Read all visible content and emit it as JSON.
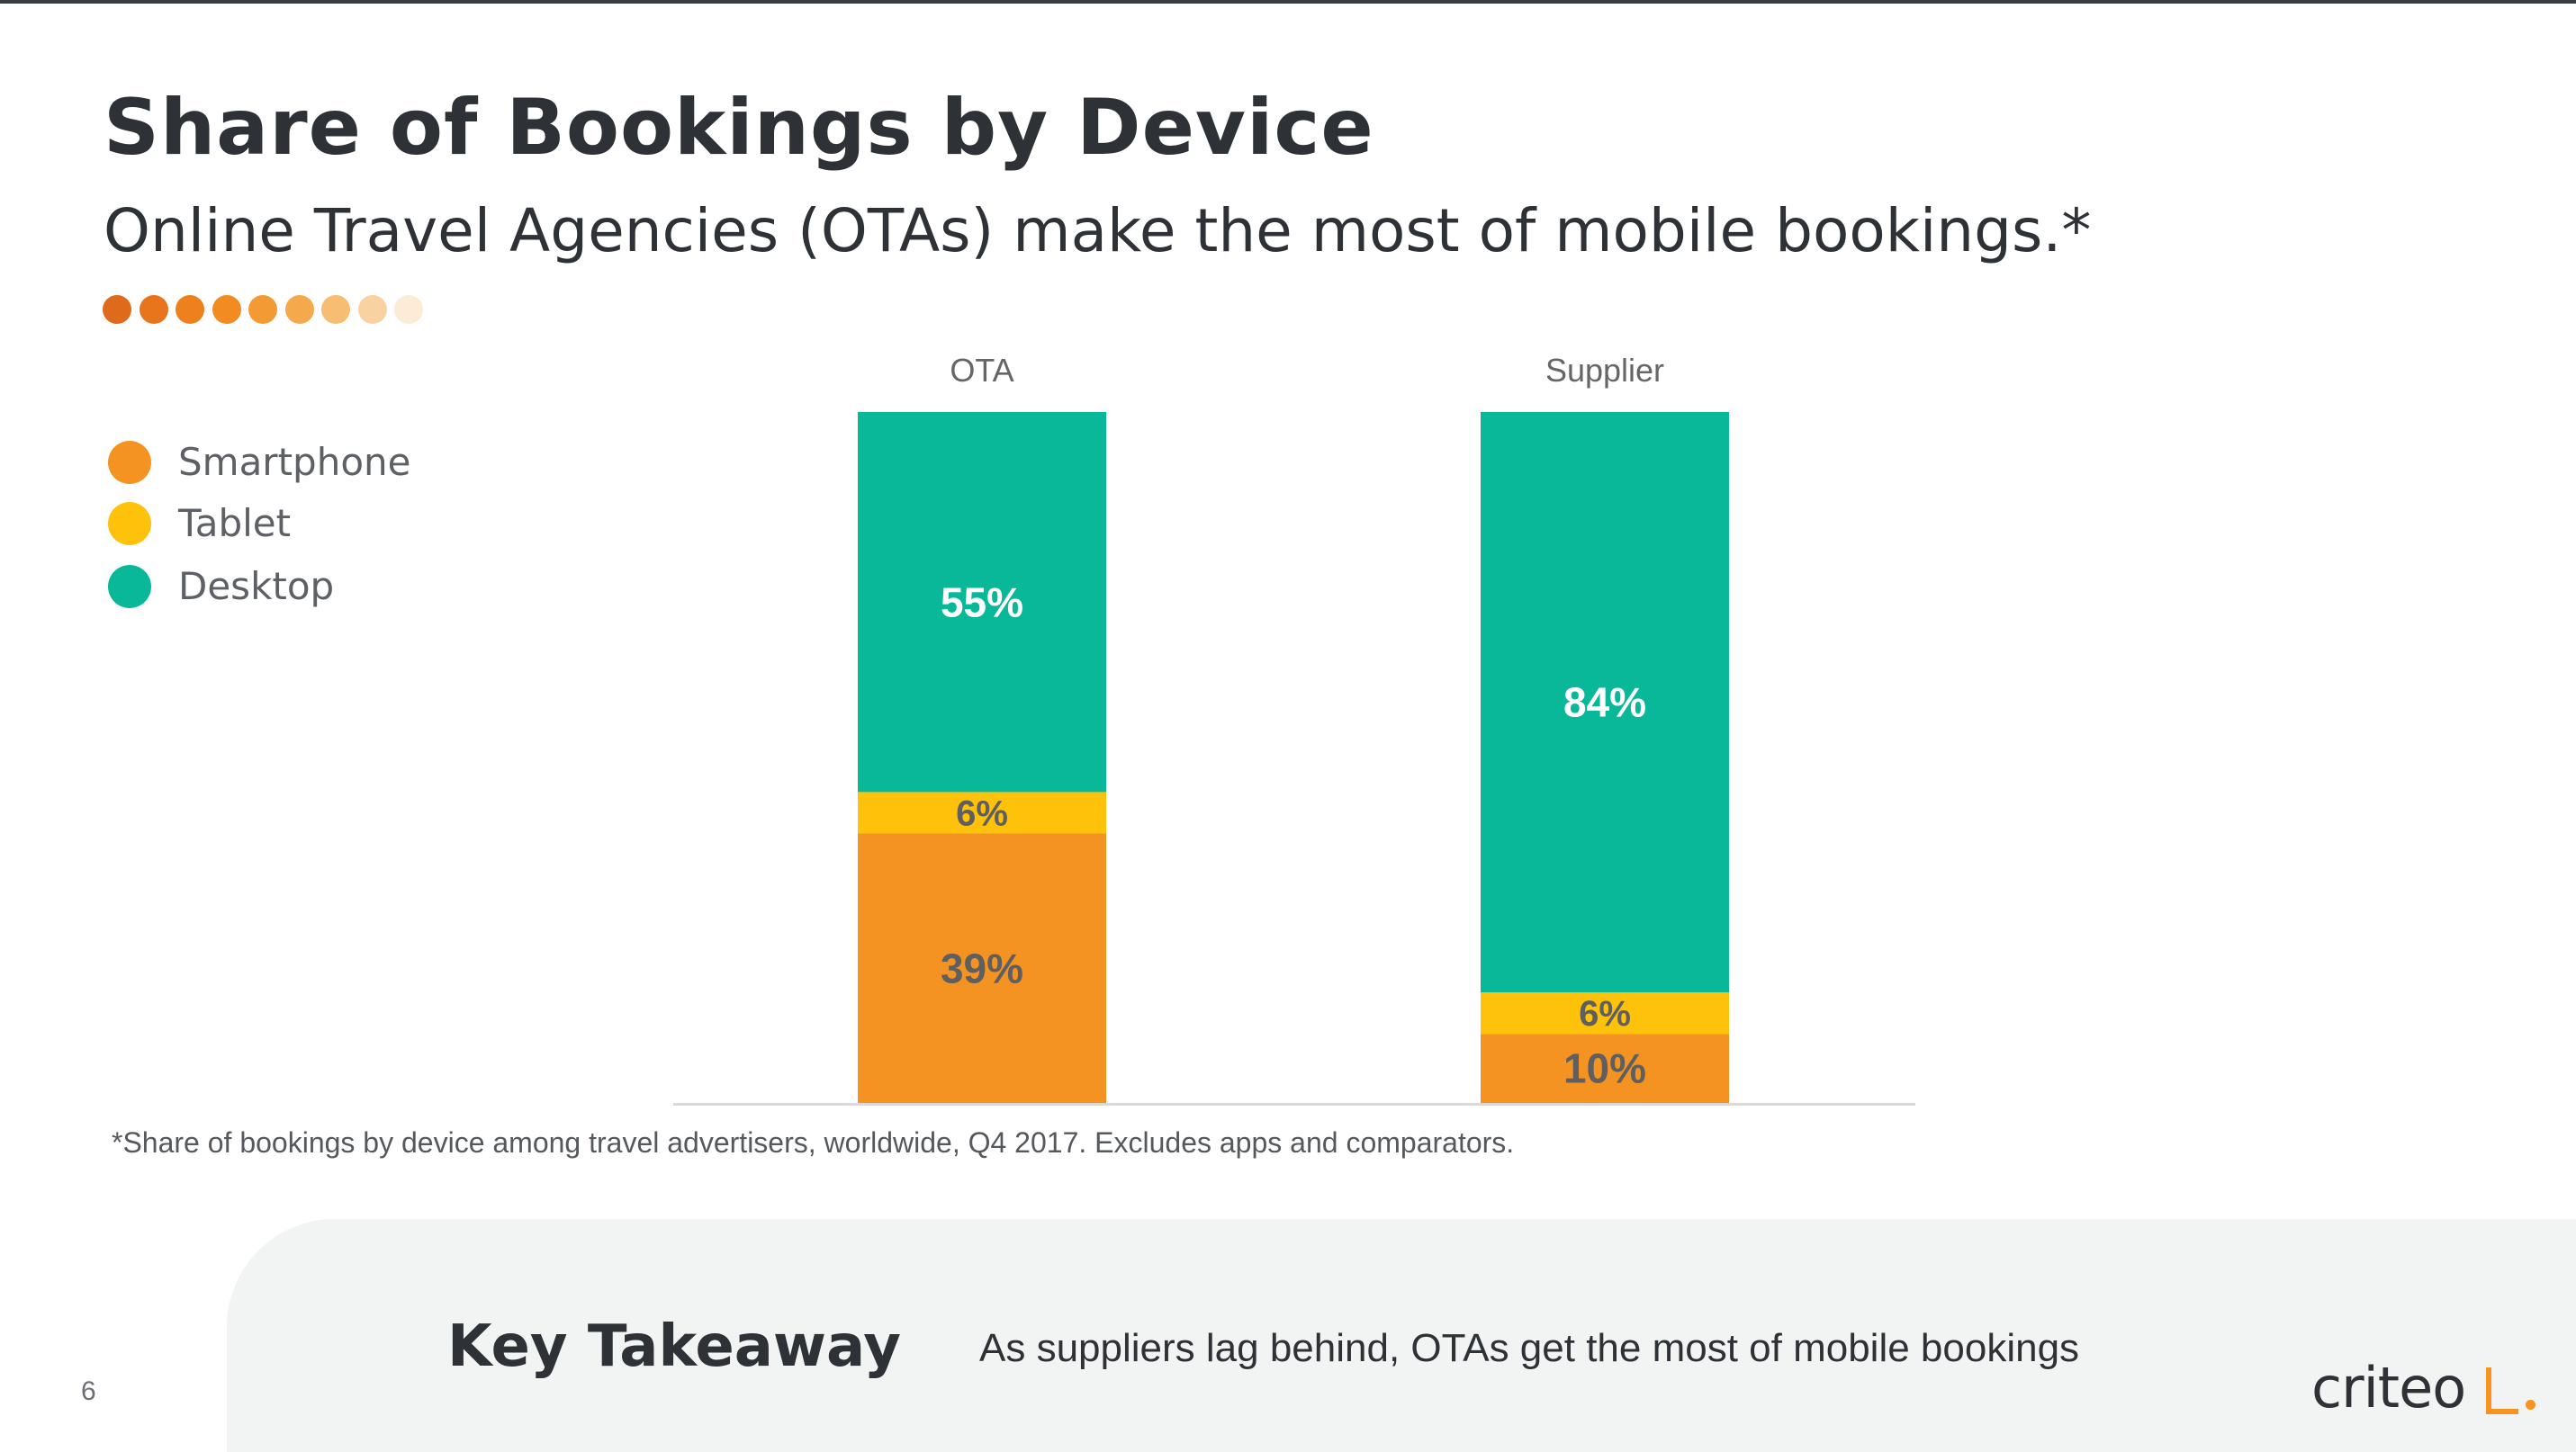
{
  "slide": {
    "title": "Share of Bookings by Device",
    "subtitle": "Online Travel Agencies (OTAs) make the most of mobile bookings.*",
    "footnote": "*Share of bookings by device among travel advertisers, worldwide, Q4 2017. Excludes apps and comparators.",
    "page_number": "6",
    "decor_dot_colors": [
      "#e06a1b",
      "#e8751c",
      "#ee811e",
      "#f28c22",
      "#f49a35",
      "#f5a94d",
      "#f7bd72",
      "#f9d2a2",
      "#fcebd6"
    ]
  },
  "takeaway": {
    "title": "Key Takeaway",
    "text": "As suppliers lag behind, OTAs get the most of mobile bookings"
  },
  "logo": {
    "text": "criteo"
  },
  "chart_data": {
    "type": "bar",
    "stacked": true,
    "categories": [
      "OTA",
      "Supplier"
    ],
    "series": [
      {
        "name": "Smartphone",
        "values": [
          39,
          10
        ],
        "labels": [
          "39%",
          "10%"
        ],
        "color": "#f59322",
        "label_color": "#5f5f5f"
      },
      {
        "name": "Tablet",
        "values": [
          6,
          6
        ],
        "labels": [
          "6%",
          "6%"
        ],
        "color": "#fec20b",
        "label_color": "#5f5f5f"
      },
      {
        "name": "Desktop",
        "values": [
          55,
          84
        ],
        "labels": [
          "55%",
          "84%"
        ],
        "color": "#08b898",
        "label_color": "#ffffff"
      }
    ],
    "ylim": [
      0,
      100
    ],
    "unit": "%",
    "legend_position": "left",
    "grid": false
  }
}
